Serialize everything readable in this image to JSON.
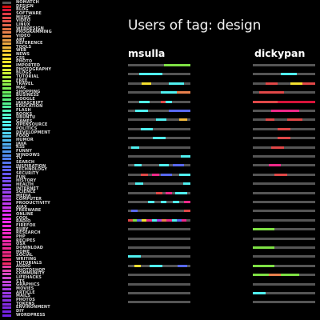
{
  "title": "Users of tag: design",
  "colors": {
    "background": "#000000",
    "track": "#555555",
    "text": "#f2f2f2"
  },
  "tags": [
    {
      "label": "NOMATCH",
      "color": "#555555"
    },
    {
      "label": "DESIGN",
      "color": "#d10e0e"
    },
    {
      "label": "BLOG",
      "color": "#d5143a"
    },
    {
      "label": "SOFTWARE",
      "color": "#dc3c44"
    },
    {
      "label": "MUSIC",
      "color": "#e04848"
    },
    {
      "label": "VIDEO",
      "color": "#e2544a"
    },
    {
      "label": "LINUX",
      "color": "#e1644a"
    },
    {
      "label": "WEBDESIGN",
      "color": "#e47040"
    },
    {
      "label": "PROGRAMMING",
      "color": "#e8804c"
    },
    {
      "label": "VIDEO",
      "color": "#e88c48"
    },
    {
      "label": "ART",
      "color": "#ea9c44"
    },
    {
      "label": "REFERENCE",
      "color": "#eeaa40"
    },
    {
      "label": "TOOLS",
      "color": "#f0b83c"
    },
    {
      "label": "WEB",
      "color": "#f2c434"
    },
    {
      "label": "NEWS",
      "color": "#f4d030"
    },
    {
      "label": "CSS",
      "color": "#f4dc2c"
    },
    {
      "label": "PHOTO",
      "color": "#f0e428"
    },
    {
      "label": "IMPORTED",
      "color": "#e8ec2c"
    },
    {
      "label": "PHOTOGRAPHY",
      "color": "#d8ee30"
    },
    {
      "label": "BLOGS",
      "color": "#c8f034"
    },
    {
      "label": "TUTORIAL",
      "color": "#b4f03c"
    },
    {
      "label": "FREE",
      "color": "#a0f044"
    },
    {
      "label": "TRAVEL",
      "color": "#8cf04c"
    },
    {
      "label": "MAC",
      "color": "#7cf054"
    },
    {
      "label": "SHOPPING",
      "color": "#6cf060"
    },
    {
      "label": "BUSINESS",
      "color": "#60f06c"
    },
    {
      "label": "GOOGLE",
      "color": "#58f07c"
    },
    {
      "label": "JAVASCRIPT",
      "color": "#54f08c"
    },
    {
      "label": "EDUCATION",
      "color": "#50f0a0"
    },
    {
      "label": "FLASH",
      "color": "#50f0b4"
    },
    {
      "label": "BOOKS",
      "color": "#50f0c4"
    },
    {
      "label": "UBUNTU",
      "color": "#50f0d4"
    },
    {
      "label": "GAMES",
      "color": "#50f0e4"
    },
    {
      "label": "OPENSOURCE",
      "color": "#50ecf0"
    },
    {
      "label": "POLITICS",
      "color": "#50e0f0"
    },
    {
      "label": "DEVELOPMENT",
      "color": "#50d4f0"
    },
    {
      "label": "FOOD",
      "color": "#50c8f0"
    },
    {
      "label": "HUMOR",
      "color": "#50bcf0"
    },
    {
      "label": "JAVA",
      "color": "#50b0f0"
    },
    {
      "label": "RSS",
      "color": "#50a4f0"
    },
    {
      "label": "FUNNY",
      "color": "#5098f0"
    },
    {
      "label": "WINDOWS",
      "color": "#508cf0"
    },
    {
      "label": "TV",
      "color": "#5080f0"
    },
    {
      "label": "SEARCH",
      "color": "#5474f0"
    },
    {
      "label": "INSPIRATION",
      "color": "#5868f0"
    },
    {
      "label": "TECHNOLOGY",
      "color": "#5c5cf0"
    },
    {
      "label": "SECURITY",
      "color": "#6456f0"
    },
    {
      "label": "FUN",
      "color": "#6c52f0"
    },
    {
      "label": "HISTORY",
      "color": "#784ef0"
    },
    {
      "label": "HEALTH",
      "color": "#844af0"
    },
    {
      "label": "INTERNET",
      "color": "#9046f0"
    },
    {
      "label": "SCIENCE",
      "color": "#9c42f0"
    },
    {
      "label": "MEDIA",
      "color": "#a840f0"
    },
    {
      "label": "COMPUTER",
      "color": "#b43cf0"
    },
    {
      "label": "PRODUCTIVITY",
      "color": "#c038f0"
    },
    {
      "label": "AJAX",
      "color": "#cc34f0"
    },
    {
      "label": "FREEWARE",
      "color": "#d830f0"
    },
    {
      "label": "ONLINE",
      "color": "#e02cf0"
    },
    {
      "label": "COOL",
      "color": "#e828f0"
    },
    {
      "label": "RADIO",
      "color": "#ee28e8"
    },
    {
      "label": "FIREFOX",
      "color": "#ee28dc"
    },
    {
      "label": "RUBY",
      "color": "#ee28d0"
    },
    {
      "label": "RESEARCH",
      "color": "#ee28c4"
    },
    {
      "label": "PHP",
      "color": "#ee28b8"
    },
    {
      "label": "RECIPES",
      "color": "#ee28ac"
    },
    {
      "label": "OSX",
      "color": "#ee28a0"
    },
    {
      "label": "DOWNLOAD",
      "color": "#ee2894"
    },
    {
      "label": "HOME",
      "color": "#ee2888"
    },
    {
      "label": "SOCIAL",
      "color": "#ee287c"
    },
    {
      "label": "WRITING",
      "color": "#ee2870"
    },
    {
      "label": "TUTORIALS",
      "color": "#ee2864"
    },
    {
      "label": "AUDIO",
      "color": "#e83ca0"
    },
    {
      "label": "PHOTOSHOP",
      "color": "#e044b0"
    },
    {
      "label": "COMMUNITY",
      "color": "#d848c0"
    },
    {
      "label": "LIFEHACKS",
      "color": "#cc48cc"
    },
    {
      "label": "STS",
      "color": "#c044d4"
    },
    {
      "label": "GRAPHICS",
      "color": "#b440dc"
    },
    {
      "label": "MOVIES",
      "color": "#a83ce0"
    },
    {
      "label": "ARTICLE",
      "color": "#9c38e4"
    },
    {
      "label": "MAILS",
      "color": "#9234e4"
    },
    {
      "label": "PHOTOS",
      "color": "#8a30e4"
    },
    {
      "label": "TOKENS",
      "color": "#842ce4"
    },
    {
      "label": "ENVIRONMENT",
      "color": "#7e28e4"
    },
    {
      "label": "DIY",
      "color": "#7824e4"
    },
    {
      "label": "WORDPRESS",
      "color": "#7020e4"
    }
  ],
  "chart_data": {
    "type": "timeline-strips",
    "title": "Users of tag: design",
    "users": [
      {
        "name": "msulla",
        "rows": [
          [
            [
              "#7ee044",
              0.58,
              1.0
            ]
          ],
          [
            [
              "#50f0f0",
              0.18,
              0.55
            ]
          ],
          [
            [
              "#f4e030",
              0.22,
              0.37
            ],
            [
              "#50f0f0",
              0.65,
              0.9
            ]
          ],
          [
            [
              "#50f0f0",
              0.52,
              0.78
            ],
            [
              "#e8804c",
              0.78,
              1.0
            ]
          ],
          [
            [
              "#50f0e4",
              0.18,
              0.35
            ],
            [
              "#e04848",
              0.52,
              0.6
            ],
            [
              "#50f0f0",
              0.6,
              0.7
            ]
          ],
          [
            [
              "#50f0f0",
              0.12,
              0.32
            ],
            [
              "#5868f0",
              0.65,
              1.0
            ]
          ],
          [
            [
              "#50f0f0",
              0.45,
              0.62
            ],
            [
              "#f0b83c",
              0.82,
              0.95
            ]
          ],
          [
            [
              "#50f0f0",
              0.2,
              0.4
            ]
          ],
          [
            [
              "#50f0f0",
              0.4,
              0.6
            ]
          ],
          [
            [
              "#50f0f0",
              0.05,
              0.18
            ]
          ],
          [
            [
              "#50f0f0",
              0.85,
              1.0
            ]
          ],
          [
            [
              "#50f0f0",
              0.1,
              0.22
            ],
            [
              "#50f0f0",
              0.5,
              0.65
            ],
            [
              "#5868f0",
              0.72,
              0.9
            ]
          ],
          [
            [
              "#e04848",
              0.2,
              0.32
            ],
            [
              "#ee2888",
              0.38,
              0.5
            ],
            [
              "#5868f0",
              0.52,
              0.7
            ],
            [
              "#50f0f0",
              0.82,
              1.0
            ]
          ],
          [
            [
              "#50f0f0",
              0.12,
              0.25
            ],
            [
              "#50f0f0",
              0.88,
              1.0
            ]
          ],
          [
            [
              "#e04848",
              0.45,
              0.55
            ],
            [
              "#ee2888",
              0.6,
              0.7
            ],
            [
              "#50f0f0",
              0.75,
              0.95
            ]
          ],
          [
            [
              "#50f0f0",
              0.32,
              0.42
            ],
            [
              "#50f0f0",
              0.52,
              0.62
            ],
            [
              "#50f0f0",
              0.72,
              0.82
            ],
            [
              "#ee2888",
              0.9,
              1.0
            ]
          ],
          [
            [
              "#5868f0",
              0.05,
              0.15
            ],
            [
              "#e04848",
              0.9,
              1.0
            ]
          ],
          [
            [
              "#e04848",
              0.0,
              0.08
            ],
            [
              "#7ee044",
              0.08,
              0.14
            ],
            [
              "#5868f0",
              0.14,
              0.22
            ],
            [
              "#f4e030",
              0.22,
              0.3
            ],
            [
              "#ee2888",
              0.3,
              0.38
            ],
            [
              "#50f0f0",
              0.38,
              0.46
            ],
            [
              "#a840f0",
              0.46,
              0.54
            ],
            [
              "#e8804c",
              0.54,
              0.62
            ],
            [
              "#ee2888",
              0.62,
              0.7
            ],
            [
              "#50f0f0",
              0.7,
              0.78
            ],
            [
              "#5868f0",
              0.78,
              0.86
            ],
            [
              "#ee2888",
              0.86,
              0.94
            ]
          ],
          [],
          [],
          [],
          [
            [
              "#50f0f0",
              0.0,
              0.2
            ]
          ],
          [
            [
              "#f4e030",
              0.1,
              0.2
            ],
            [
              "#50f0f0",
              0.35,
              0.55
            ],
            [
              "#5868f0",
              0.8,
              0.95
            ]
          ],
          [],
          [],
          [],
          []
        ]
      },
      {
        "name": "dickypan",
        "rows": [
          [],
          [
            [
              "#50f0f0",
              0.45,
              0.7
            ]
          ],
          [
            [
              "#e04848",
              0.2,
              0.4
            ],
            [
              "#f4e030",
              0.6,
              0.8
            ],
            [
              "#e04848",
              0.8,
              1.0
            ]
          ],
          [
            [
              "#e04848",
              0.1,
              0.5
            ]
          ],
          [
            [
              "#e04848",
              0.0,
              0.4
            ],
            [
              "#d5143a",
              0.4,
              1.0
            ]
          ],
          [
            [
              "#ee2888",
              0.3,
              0.75
            ]
          ],
          [
            [
              "#e04848",
              0.2,
              0.35
            ],
            [
              "#e04848",
              0.55,
              0.8
            ]
          ],
          [
            [
              "#e04848",
              0.4,
              0.6
            ]
          ],
          [
            [
              "#e04848",
              0.4,
              0.6
            ]
          ],
          [
            [
              "#e04848",
              0.3,
              0.5
            ]
          ],
          [],
          [
            [
              "#ee2888",
              0.25,
              0.45
            ]
          ],
          [
            [
              "#e04848",
              0.35,
              0.55
            ]
          ],
          [],
          [],
          [],
          [],
          [],
          [
            [
              "#7ee044",
              0.0,
              0.35
            ]
          ],
          [],
          [
            [
              "#7ee044",
              0.0,
              0.35
            ]
          ],
          [],
          [
            [
              "#7ee044",
              0.0,
              0.35
            ]
          ],
          [
            [
              "#7ee044",
              0.0,
              0.25
            ],
            [
              "#e8804c",
              0.25,
              0.45
            ],
            [
              "#7ee044",
              0.45,
              0.75
            ]
          ],
          [],
          [
            [
              "#50f0f0",
              0.0,
              0.2
            ]
          ],
          []
        ]
      }
    ]
  }
}
